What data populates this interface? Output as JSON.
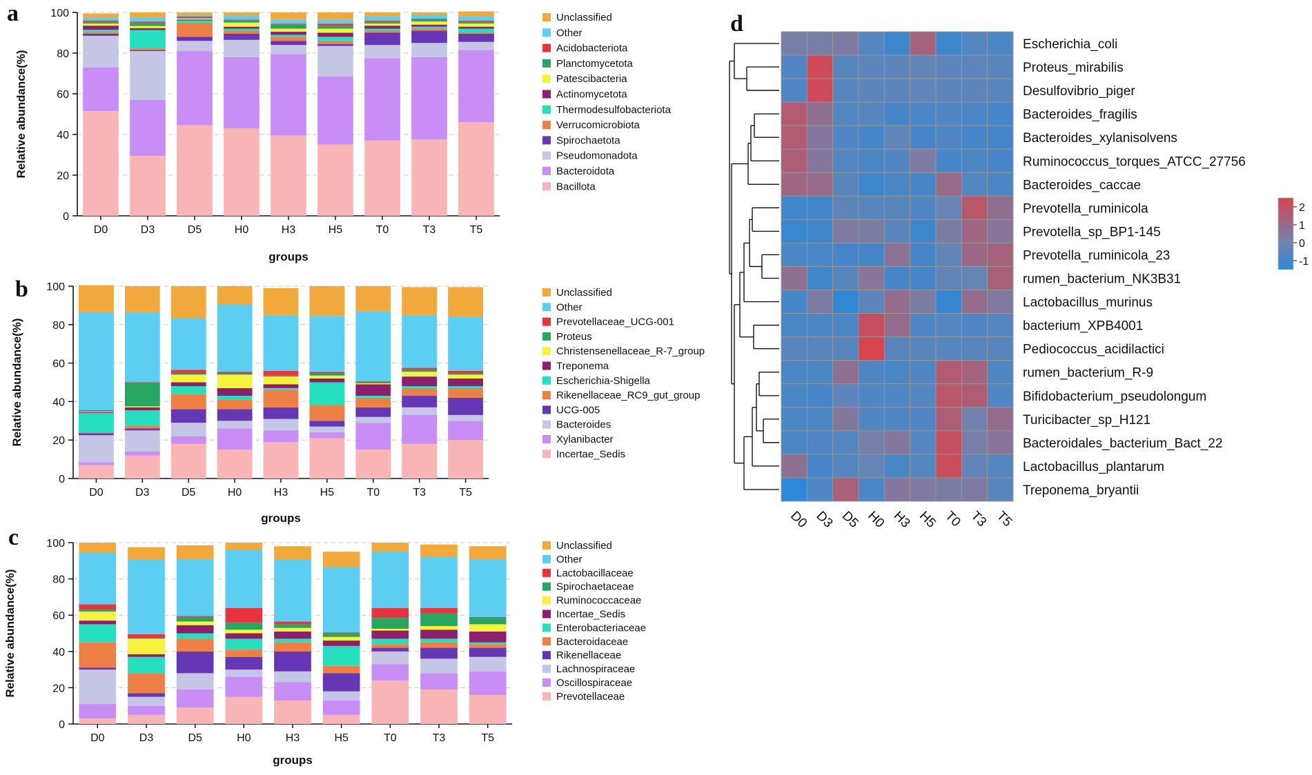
{
  "panels": {
    "a": "a",
    "b": "b",
    "c": "c",
    "d": "d"
  },
  "colors": {
    "Unclassified": "#f0a93a",
    "Other": "#5ccef2",
    "c3": "#e8343f",
    "c4": "#27a65f",
    "c5": "#f7f23b",
    "c6": "#8e1f6e",
    "c7": "#26dfbf",
    "c8": "#ee7f45",
    "c9": "#6637b5",
    "c10": "#c5c5e6",
    "c11": "#c98ef5",
    "c12": "#f9b5b5"
  },
  "chart_data": [
    {
      "id": "a",
      "type": "bar",
      "stacked": true,
      "xlabel": "groups",
      "ylabel": "Relative abundance(%)",
      "ylim": [
        0,
        100
      ],
      "yticks": [
        "0",
        "20",
        "40",
        "60",
        "80",
        "100"
      ],
      "categories": [
        "D0",
        "D3",
        "D5",
        "H0",
        "H3",
        "H5",
        "T0",
        "T3",
        "T5"
      ],
      "series": [
        {
          "name": "Bacillota",
          "values": [
            51.5,
            29.5,
            44.5,
            43,
            39.5,
            35,
            37,
            37.5,
            46
          ]
        },
        {
          "name": "Bacteroidota",
          "values": [
            21.5,
            27.5,
            36.5,
            35,
            40,
            33.5,
            40.5,
            40.5,
            35.5
          ]
        },
        {
          "name": "Pseudomonadota",
          "values": [
            15.5,
            24,
            5,
            8.5,
            4.5,
            15,
            6.5,
            7,
            4
          ]
        },
        {
          "name": "Spirochaetota",
          "values": [
            1,
            0.5,
            2,
            3,
            2,
            1,
            6,
            6,
            4
          ]
        },
        {
          "name": "Verrucomicrobiota",
          "values": [
            0.8,
            0.8,
            7,
            1.5,
            2,
            1.5,
            1,
            1,
            0.5
          ]
        },
        {
          "name": "Thermodesulfobacteriota",
          "values": [
            1.2,
            9,
            1,
            1,
            1,
            2,
            1,
            1,
            2
          ]
        },
        {
          "name": "Actinomycetota",
          "values": [
            2,
            1,
            0.5,
            1,
            1.5,
            2,
            1.5,
            1,
            1
          ]
        },
        {
          "name": "Patescibacteria",
          "values": [
            1,
            1,
            0.5,
            2,
            1.5,
            2,
            1,
            1.5,
            1.5
          ]
        },
        {
          "name": "Planctomycetota",
          "values": [
            1,
            1.5,
            0.5,
            1,
            2,
            1.5,
            1,
            1,
            1
          ]
        },
        {
          "name": "Acidobacteriota",
          "values": [
            0.5,
            0.7,
            0.5,
            0.5,
            0.5,
            1,
            0.5,
            0.5,
            0.5
          ]
        },
        {
          "name": "Other",
          "values": [
            1.5,
            2,
            1,
            2,
            2,
            2,
            2,
            2,
            2
          ]
        },
        {
          "name": "Unclassified",
          "values": [
            2,
            2.5,
            1,
            1.5,
            3.5,
            3.5,
            2,
            1,
            2.5
          ]
        }
      ]
    },
    {
      "id": "b",
      "type": "bar",
      "stacked": true,
      "xlabel": "groups",
      "ylabel": "Relative abundance(%)",
      "ylim": [
        0,
        100
      ],
      "yticks": [
        "0",
        "20",
        "40",
        "60",
        "80",
        "100"
      ],
      "categories": [
        "D0",
        "D3",
        "D5",
        "H0",
        "H3",
        "H5",
        "T0",
        "T3",
        "T5"
      ],
      "series": [
        {
          "name": "Incertae_Sedis",
          "values": [
            7,
            12,
            18,
            15,
            19,
            21,
            15,
            18,
            20
          ]
        },
        {
          "name": "Xylanibacter",
          "values": [
            1.5,
            2,
            4,
            11,
            6,
            3,
            14,
            15,
            10
          ]
        },
        {
          "name": "Bacteroides",
          "values": [
            14,
            11,
            7,
            4,
            6,
            3,
            3,
            4,
            3
          ]
        },
        {
          "name": "UCG-005",
          "values": [
            1,
            1,
            7,
            6,
            6,
            3,
            5,
            6,
            9
          ]
        },
        {
          "name": "Rikenellaceae_RC9_gut_group",
          "values": [
            0.5,
            1.5,
            8,
            5,
            9,
            8,
            5,
            4,
            5
          ]
        },
        {
          "name": "Escherichia-Shigella",
          "values": [
            10,
            8,
            4,
            2,
            1,
            12,
            1,
            1,
            1
          ]
        },
        {
          "name": "Treponema",
          "values": [
            0.5,
            1.5,
            2,
            4,
            2,
            2,
            6,
            5,
            4
          ]
        },
        {
          "name": "Christensenellaceae_R-7_group",
          "values": [
            0.3,
            0.5,
            4,
            7,
            4,
            1.5,
            0.5,
            2.5,
            2
          ]
        },
        {
          "name": "Proteus",
          "values": [
            0.2,
            12,
            0.5,
            0.5,
            0.5,
            1,
            0.5,
            1,
            0.5
          ]
        },
        {
          "name": "Prevotellaceae_UCG-001",
          "values": [
            0.5,
            0.5,
            2,
            1,
            2.5,
            1,
            0.5,
            1,
            1.5
          ]
        },
        {
          "name": "Other",
          "values": [
            51,
            36.5,
            27,
            35,
            29,
            29,
            36.5,
            27.5,
            28
          ]
        },
        {
          "name": "Unclassified",
          "values": [
            14,
            13.5,
            16.5,
            9.5,
            14,
            15.5,
            13,
            14.5,
            15.5
          ]
        }
      ]
    },
    {
      "id": "c",
      "type": "bar",
      "stacked": true,
      "xlabel": "groups",
      "ylabel": "Relative abundance(%)",
      "ylim": [
        0,
        100
      ],
      "yticks": [
        "0",
        "20",
        "40",
        "60",
        "80",
        "100"
      ],
      "categories": [
        "D0",
        "D3",
        "D5",
        "H0",
        "H3",
        "H5",
        "T0",
        "T3",
        "T5"
      ],
      "series": [
        {
          "name": "Prevotellaceae",
          "values": [
            3,
            5,
            9,
            15,
            13,
            5,
            24,
            19,
            16
          ]
        },
        {
          "name": "Oscillospiraceae",
          "values": [
            8,
            5,
            10,
            11,
            10,
            8,
            9,
            9,
            13
          ]
        },
        {
          "name": "Lachnospiraceae",
          "values": [
            19,
            5,
            9,
            4,
            6,
            5,
            7,
            8,
            8
          ]
        },
        {
          "name": "Rikenellaceae",
          "values": [
            1,
            2,
            12,
            7,
            11,
            10,
            2,
            6,
            5
          ]
        },
        {
          "name": "Bacteroidaceae",
          "values": [
            14,
            11,
            7,
            4,
            5,
            4,
            2,
            3,
            2
          ]
        },
        {
          "name": "Enterobacteriaceae",
          "values": [
            10,
            9,
            3,
            6,
            2,
            11,
            3,
            2,
            1
          ]
        },
        {
          "name": "Incertae_Sedis",
          "values": [
            2,
            1.5,
            4.5,
            3,
            4,
            3,
            4.5,
            5,
            6
          ]
        },
        {
          "name": "Ruminococcaceae",
          "values": [
            5,
            8.5,
            2,
            2,
            2,
            2,
            1,
            2,
            4
          ]
        },
        {
          "name": "Spirochaetaceae",
          "values": [
            1,
            0.5,
            2.5,
            4,
            2,
            2,
            6,
            7,
            3.5
          ]
        },
        {
          "name": "Lactobacillaceae",
          "values": [
            3,
            2,
            0.5,
            8,
            1.5,
            0.5,
            5.5,
            3,
            0.5
          ]
        },
        {
          "name": "Other",
          "values": [
            28.5,
            41,
            31.5,
            32,
            34,
            36,
            31,
            28,
            32
          ]
        },
        {
          "name": "Unclassified",
          "values": [
            5.5,
            7,
            7.5,
            4,
            7.5,
            8.5,
            5,
            7,
            7
          ]
        }
      ]
    },
    {
      "id": "d",
      "type": "heatmap",
      "columns": [
        "D0",
        "D3",
        "D5",
        "H0",
        "H3",
        "H5",
        "T0",
        "T3",
        "T5"
      ],
      "rows": [
        "Escherichia_coli",
        "Proteus_mirabilis",
        "Desulfovibrio_piger",
        "Bacteroides_fragilis",
        "Bacteroides_xylanisolvens",
        "Ruminococcus_torques_ATCC_27756",
        "Bacteroides_caccae",
        "Prevotella_ruminicola",
        "Prevotella_sp_BP1-145",
        "Prevotella_ruminicola_23",
        "rumen_bacterium_NK3B31",
        "Lactobacillus_murinus",
        "bacterium_XPB4001",
        "Pediococcus_acidilactici",
        "rumen_bacterium_R-9",
        "Bifidobacterium_pseudolongum",
        "Turicibacter_sp_H121",
        "Bacteroidales_bacterium_Bact_22",
        "Lactobacillus_plantarum",
        "Treponema_bryantii"
      ],
      "values": [
        [
          0.2,
          0.2,
          0.4,
          -0.6,
          -1.1,
          1.3,
          -1.1,
          -0.6,
          -0.8
        ],
        [
          -0.7,
          2.3,
          -0.5,
          -0.4,
          -0.4,
          -0.3,
          -0.4,
          -0.4,
          -0.5
        ],
        [
          -0.7,
          2.3,
          -0.5,
          -0.4,
          -0.4,
          -0.3,
          -0.4,
          -0.4,
          -0.5
        ],
        [
          1.6,
          0.8,
          -0.6,
          -0.5,
          -0.9,
          -0.8,
          -0.7,
          -0.8,
          -0.9
        ],
        [
          1.6,
          0.5,
          -0.7,
          -0.9,
          -0.3,
          -0.9,
          -0.7,
          -0.9,
          -0.9
        ],
        [
          1.5,
          0.5,
          -0.6,
          -0.8,
          -0.7,
          0.4,
          -0.9,
          -0.8,
          -0.9
        ],
        [
          1.2,
          1.0,
          -0.5,
          -1.1,
          -0.8,
          -0.9,
          1.0,
          -0.6,
          -0.8
        ],
        [
          -1.0,
          -1.0,
          -0.4,
          -0.5,
          -0.5,
          -0.7,
          -0.2,
          1.8,
          0.8
        ],
        [
          -1.2,
          -1.1,
          0.4,
          0.3,
          -0.5,
          -1.1,
          0.3,
          1.2,
          0.6
        ],
        [
          -0.8,
          -0.8,
          -0.9,
          -0.9,
          0.7,
          -0.9,
          -0.3,
          1.1,
          1.3
        ],
        [
          0.8,
          -1.0,
          -0.5,
          0.6,
          -0.9,
          -0.9,
          -0.3,
          -0.2,
          1.4
        ],
        [
          -0.9,
          0.3,
          -1.4,
          -0.4,
          0.9,
          0.3,
          -1.3,
          0.9,
          0.4
        ],
        [
          -0.8,
          -0.8,
          -0.8,
          2.1,
          0.9,
          -0.7,
          -0.6,
          -0.7,
          -0.6
        ],
        [
          -0.5,
          -0.5,
          -0.5,
          2.5,
          -0.5,
          -0.5,
          -0.5,
          -0.5,
          -0.5
        ],
        [
          -0.8,
          -0.8,
          0.8,
          -0.7,
          -0.8,
          -0.7,
          1.6,
          1.3,
          -0.7
        ],
        [
          -0.8,
          -0.9,
          -0.4,
          -0.7,
          -0.7,
          -0.6,
          1.8,
          1.5,
          -0.7
        ],
        [
          -0.8,
          -0.8,
          0.5,
          -0.7,
          -0.7,
          -0.7,
          1.5,
          0.1,
          0.9
        ],
        [
          -0.8,
          -0.7,
          -0.6,
          0.2,
          0.5,
          -0.6,
          2.1,
          0.2,
          0.6
        ],
        [
          0.8,
          -0.9,
          -0.6,
          -0.2,
          -0.8,
          -0.6,
          2.2,
          -0.3,
          -0.6
        ],
        [
          -1.6,
          -0.7,
          1.4,
          -0.8,
          0.5,
          0.4,
          0.3,
          0.4,
          -0.5
        ]
      ],
      "colorbar": {
        "ticks": [
          "2",
          "1",
          "0",
          "-1"
        ],
        "range": [
          -1.5,
          2.5
        ],
        "low": "#2c88d8",
        "mid": "#6f84b0",
        "high": "#d64550"
      }
    }
  ]
}
